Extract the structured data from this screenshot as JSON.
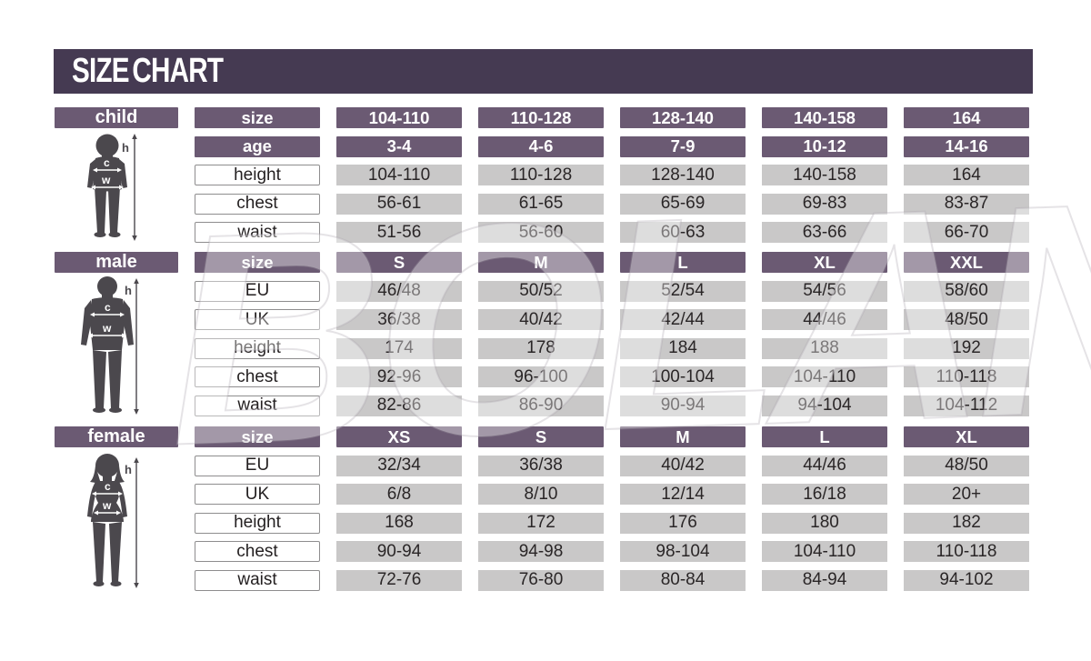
{
  "title": "SIZE CHART",
  "watermark_text": "BOLAND",
  "figure_labels": {
    "height": "h",
    "chest": "c",
    "waist": "w"
  },
  "colors": {
    "title_bar": "#453a52",
    "header_cell": "#6b5a73",
    "data_cell": "#c9c8c8",
    "label_cell_border": "#8e8d8e",
    "text_dark": "#231f20",
    "silhouette": "#4b484d",
    "page_bg": "#ffffff"
  },
  "sections": [
    {
      "label": "child",
      "rows": [
        {
          "type": "header",
          "label": "size",
          "values": [
            "104-110",
            "110-128",
            "128-140",
            "140-158",
            "164"
          ]
        },
        {
          "type": "header",
          "label": "age",
          "values": [
            "3-4",
            "4-6",
            "7-9",
            "10-12",
            "14-16"
          ]
        },
        {
          "type": "data",
          "label": "height",
          "values": [
            "104-110",
            "110-128",
            "128-140",
            "140-158",
            "164"
          ]
        },
        {
          "type": "data",
          "label": "chest",
          "values": [
            "56-61",
            "61-65",
            "65-69",
            "69-83",
            "83-87"
          ]
        },
        {
          "type": "data",
          "label": "waist",
          "values": [
            "51-56",
            "56-60",
            "60-63",
            "63-66",
            "66-70"
          ]
        }
      ]
    },
    {
      "label": "male",
      "rows": [
        {
          "type": "header",
          "label": "size",
          "values": [
            "S",
            "M",
            "L",
            "XL",
            "XXL"
          ]
        },
        {
          "type": "data",
          "label": "EU",
          "values": [
            "46/48",
            "50/52",
            "52/54",
            "54/56",
            "58/60"
          ]
        },
        {
          "type": "data",
          "label": "UK",
          "values": [
            "36/38",
            "40/42",
            "42/44",
            "44/46",
            "48/50"
          ]
        },
        {
          "type": "data",
          "label": "height",
          "values": [
            "174",
            "178",
            "184",
            "188",
            "192"
          ]
        },
        {
          "type": "data",
          "label": "chest",
          "values": [
            "92-96",
            "96-100",
            "100-104",
            "104-110",
            "110-118"
          ]
        },
        {
          "type": "data",
          "label": "waist",
          "values": [
            "82-86",
            "86-90",
            "90-94",
            "94-104",
            "104-112"
          ]
        }
      ]
    },
    {
      "label": "female",
      "rows": [
        {
          "type": "header",
          "label": "size",
          "values": [
            "XS",
            "S",
            "M",
            "L",
            "XL"
          ]
        },
        {
          "type": "data",
          "label": "EU",
          "values": [
            "32/34",
            "36/38",
            "40/42",
            "44/46",
            "48/50"
          ]
        },
        {
          "type": "data",
          "label": "UK",
          "values": [
            "6/8",
            "8/10",
            "12/14",
            "16/18",
            "20+"
          ]
        },
        {
          "type": "data",
          "label": "height",
          "values": [
            "168",
            "172",
            "176",
            "180",
            "182"
          ]
        },
        {
          "type": "data",
          "label": "chest",
          "values": [
            "90-94",
            "94-98",
            "98-104",
            "104-110",
            "110-118"
          ]
        },
        {
          "type": "data",
          "label": "waist",
          "values": [
            "72-76",
            "76-80",
            "80-84",
            "84-94",
            "94-102"
          ]
        }
      ]
    }
  ]
}
